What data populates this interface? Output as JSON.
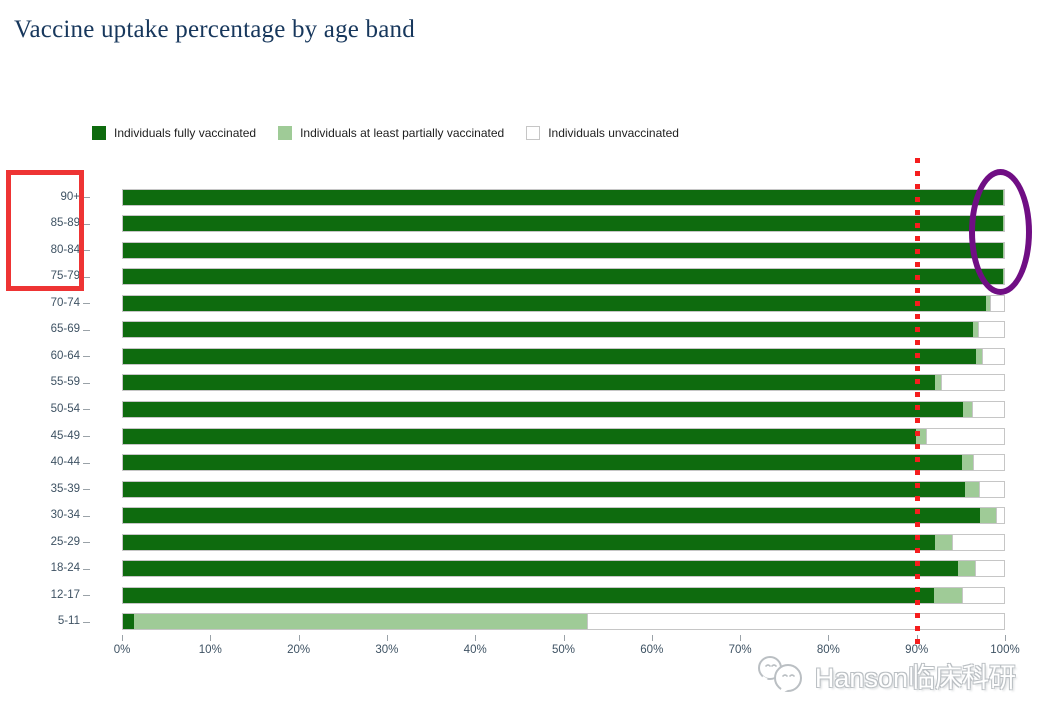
{
  "page": {
    "title": "Vaccine uptake percentage by age band"
  },
  "chart_data": {
    "type": "bar",
    "orientation": "horizontal-stacked",
    "title": "Vaccine uptake percentage by age band",
    "xlabel": "",
    "ylabel": "",
    "xlim": [
      0,
      100
    ],
    "x_tick_values": [
      0,
      10,
      20,
      30,
      40,
      50,
      60,
      70,
      80,
      90,
      100
    ],
    "x_tick_labels": [
      "0%",
      "10%",
      "20%",
      "30%",
      "40%",
      "50%",
      "60%",
      "70%",
      "80%",
      "90%",
      "100%"
    ],
    "categories": [
      "90+",
      "85-89",
      "80-84",
      "75-79",
      "70-74",
      "65-69",
      "60-64",
      "55-59",
      "50-54",
      "45-49",
      "40-44",
      "35-39",
      "30-34",
      "25-29",
      "18-24",
      "12-17",
      "5-11"
    ],
    "series": [
      {
        "name": "Individuals fully vaccinated",
        "color": "#0e6b0e",
        "values": [
          99.9,
          99.9,
          99.9,
          99.9,
          98.0,
          96.5,
          96.8,
          92.2,
          95.4,
          90.0,
          95.2,
          95.6,
          97.3,
          92.2,
          94.8,
          92.0,
          1.3
        ]
      },
      {
        "name": "Individuals at least partially vaccinated",
        "color": "#9fcb97",
        "values": [
          0.1,
          0.1,
          0.1,
          0.1,
          0.4,
          0.5,
          0.7,
          0.7,
          1.0,
          1.2,
          1.3,
          1.6,
          1.8,
          1.9,
          1.9,
          3.2,
          51.4
        ]
      },
      {
        "name": "Individuals unvaccinated",
        "color": "#ffffff",
        "values": [
          0.0,
          0.0,
          0.0,
          0.0,
          1.6,
          3.0,
          2.5,
          7.1,
          3.6,
          8.8,
          3.5,
          2.8,
          0.9,
          5.9,
          3.3,
          4.8,
          47.3
        ]
      }
    ],
    "grid": false,
    "legend_position": "top-left",
    "annotations": {
      "threshold_line": {
        "x_value": 90,
        "style": "red dotted vertical line"
      },
      "highlight_rectangle": {
        "style": "red rectangle",
        "around_category_labels": [
          "90+",
          "85-89",
          "80-84",
          "75-79"
        ]
      },
      "highlight_ellipse": {
        "style": "purple ellipse",
        "around": "right ends of top four bars near 100%"
      }
    }
  },
  "watermark": {
    "text": "Hanson临床科研",
    "icon": "wechat-icon"
  },
  "colors": {
    "title_text": "#17375c",
    "axis_text": "#3e5263",
    "bar_border": "#c6c6c6",
    "annotation_red": "#ee3434",
    "annotation_purple": "#700e84",
    "threshold_red": "#f51d1d"
  }
}
